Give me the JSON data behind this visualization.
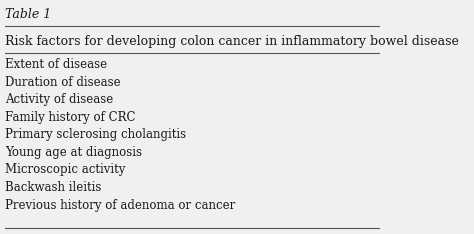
{
  "title": "Table 1",
  "header": "Risk factors for developing colon cancer in inflammatory bowel disease",
  "rows": [
    "Extent of disease",
    "Duration of disease",
    "Activity of disease",
    "Family history of CRC",
    "Primary sclerosing cholangitis",
    "Young age at diagnosis",
    "Microscopic activity",
    "Backwash ileitis",
    "Previous history of adenoma or cancer"
  ],
  "bg_color": "#f0f0f0",
  "text_color": "#1a1a1a",
  "line_color": "#555555",
  "title_fontsize": 9,
  "header_fontsize": 9,
  "row_fontsize": 8.5
}
